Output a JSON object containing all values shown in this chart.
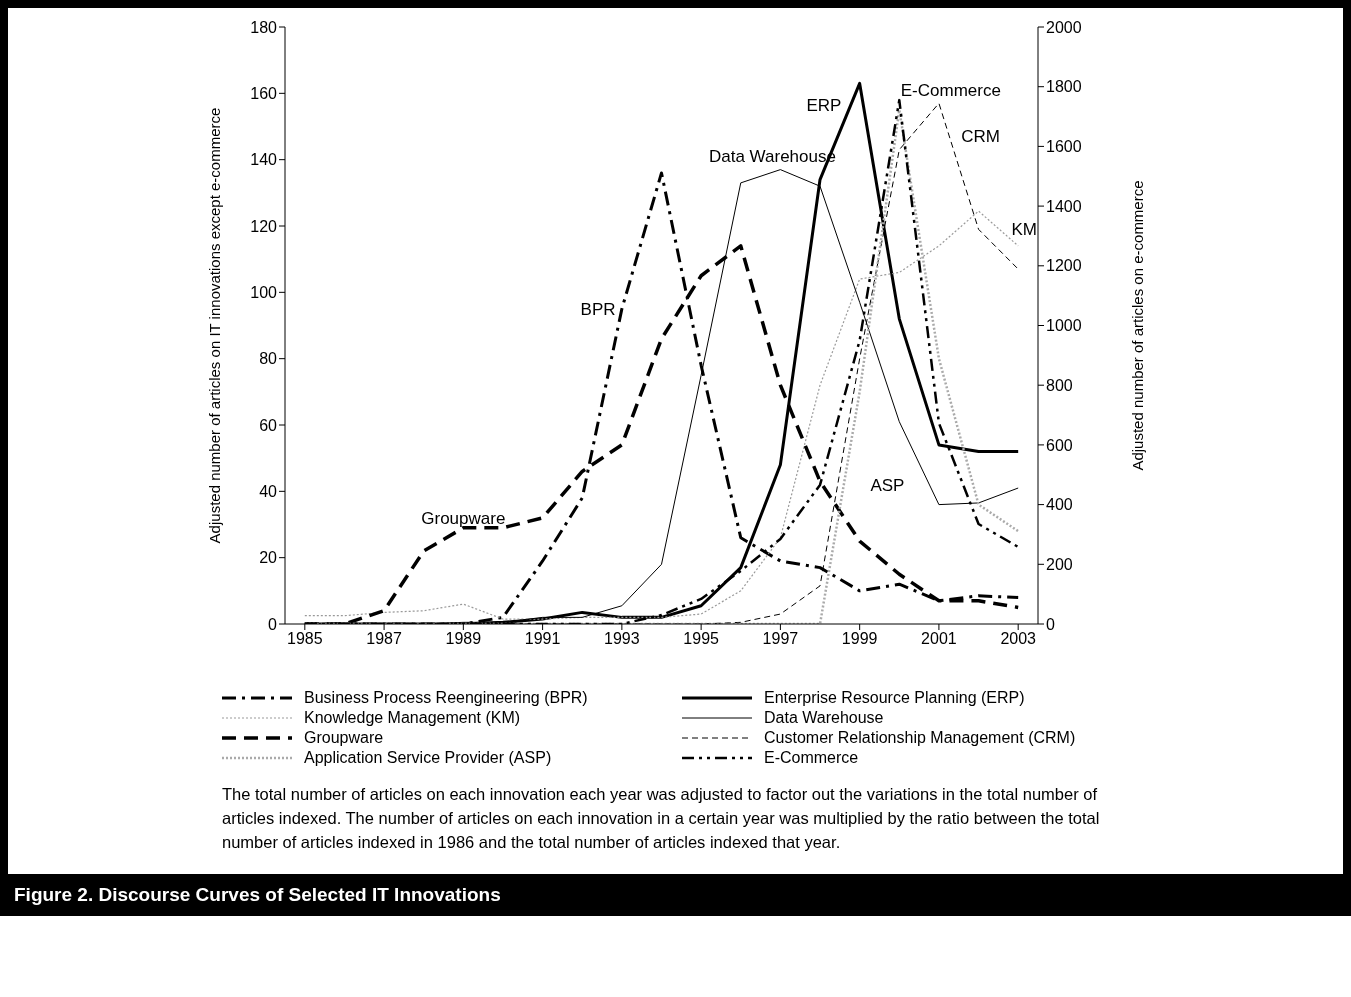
{
  "chart_data": {
    "type": "line",
    "title": "Figure 2.  Discourse Curves of Selected IT Innovations",
    "ylabel": "Adjusted number of articles on IT innovations except e-commerce",
    "y2label": "Adjusted number of articles on e-commerce",
    "x": [
      1985,
      1986,
      1987,
      1988,
      1989,
      1990,
      1991,
      1992,
      1993,
      1994,
      1995,
      1996,
      1997,
      1998,
      1999,
      2000,
      2001,
      2002,
      2003
    ],
    "xlim": [
      1984.5,
      2003.5
    ],
    "xticks": [
      1985,
      1987,
      1989,
      1991,
      1993,
      1995,
      1997,
      1999,
      2001,
      2003
    ],
    "ylim": [
      0,
      180
    ],
    "yticks": [
      0,
      20,
      40,
      60,
      80,
      100,
      120,
      140,
      160,
      180
    ],
    "y2lim": [
      0,
      2000
    ],
    "y2ticks": [
      0,
      200,
      400,
      600,
      800,
      1000,
      1200,
      1400,
      1600,
      1800,
      2000
    ],
    "marker": "none",
    "legend": "bottom",
    "series": [
      {
        "name": "Business Process Reengineering (BPR)",
        "color": "#000000",
        "line_style": "dashdot",
        "values": [
          0,
          0,
          0,
          0,
          0,
          2,
          19,
          38,
          95,
          136,
          78,
          26,
          19,
          17,
          10,
          12,
          7,
          8.5,
          8
        ]
      },
      {
        "name": "Enterprise Resource Planning (ERP)",
        "color": "#000000",
        "line_style": "solid",
        "values": [
          0,
          0,
          0,
          0,
          0,
          0.5,
          1.5,
          3.5,
          2,
          2,
          5.5,
          17,
          48,
          134,
          163,
          92,
          54,
          52,
          52
        ]
      },
      {
        "name": "Knowledge Management (KM)",
        "color": "#999999",
        "line_style": "dotted",
        "values": [
          2.5,
          2.5,
          3.5,
          4,
          6,
          1.5,
          1.5,
          2,
          2,
          2,
          3,
          10,
          26,
          72,
          104,
          106,
          114,
          124.5,
          114
        ]
      },
      {
        "name": "Data Warehouse",
        "color": "#000000",
        "line_style": "solid",
        "values": [
          0,
          0,
          0,
          0,
          0.5,
          0.5,
          2,
          2,
          5.5,
          18,
          75,
          133,
          137,
          132,
          97,
          61,
          36,
          36.5,
          41
        ]
      },
      {
        "name": "Groupware",
        "color": "#000000",
        "line_style": "dashed",
        "values": [
          0,
          0,
          4,
          22,
          29,
          29,
          32,
          46,
          54,
          86,
          105,
          114,
          72,
          43,
          25,
          15,
          7,
          7,
          5
        ]
      },
      {
        "name": "Customer Relationship Management (CRM)",
        "color": "#000000",
        "line_style": "dashed",
        "values": [
          0,
          0,
          0,
          0,
          0,
          0,
          0,
          0,
          0,
          0,
          0,
          0.5,
          3,
          11.5,
          80,
          143,
          157,
          119,
          107
        ]
      },
      {
        "name": "Application Service Provider (ASP)",
        "color": "#aaaaaa",
        "line_style": "dotted",
        "values": [
          0,
          0,
          0,
          0,
          0,
          0,
          0,
          0,
          0,
          0,
          0,
          0,
          0,
          0,
          70,
          155,
          80,
          36,
          28
        ]
      },
      {
        "name": "E-Commerce",
        "color": "#000000",
        "line_style": "dashdotdot",
        "axis": "y2",
        "values": [
          0,
          0,
          0,
          0,
          0,
          0,
          0,
          0,
          0,
          30,
          84,
          178,
          285,
          466,
          950,
          1755,
          673,
          335,
          258
        ]
      }
    ],
    "annotations": [
      "BPR",
      "Groupware",
      "Data Warehouse",
      "ERP",
      "E-Commerce",
      "CRM",
      "KM",
      "ASP",
      "The total number of articles on each innovation each year was adjusted to factor out the variations in the total number of articles indexed.  The number of articles on each innovation in a certain year was multiplied by the ratio between the total number of articles indexed in 1986 and the total number of articles indexed that year."
    ]
  }
}
